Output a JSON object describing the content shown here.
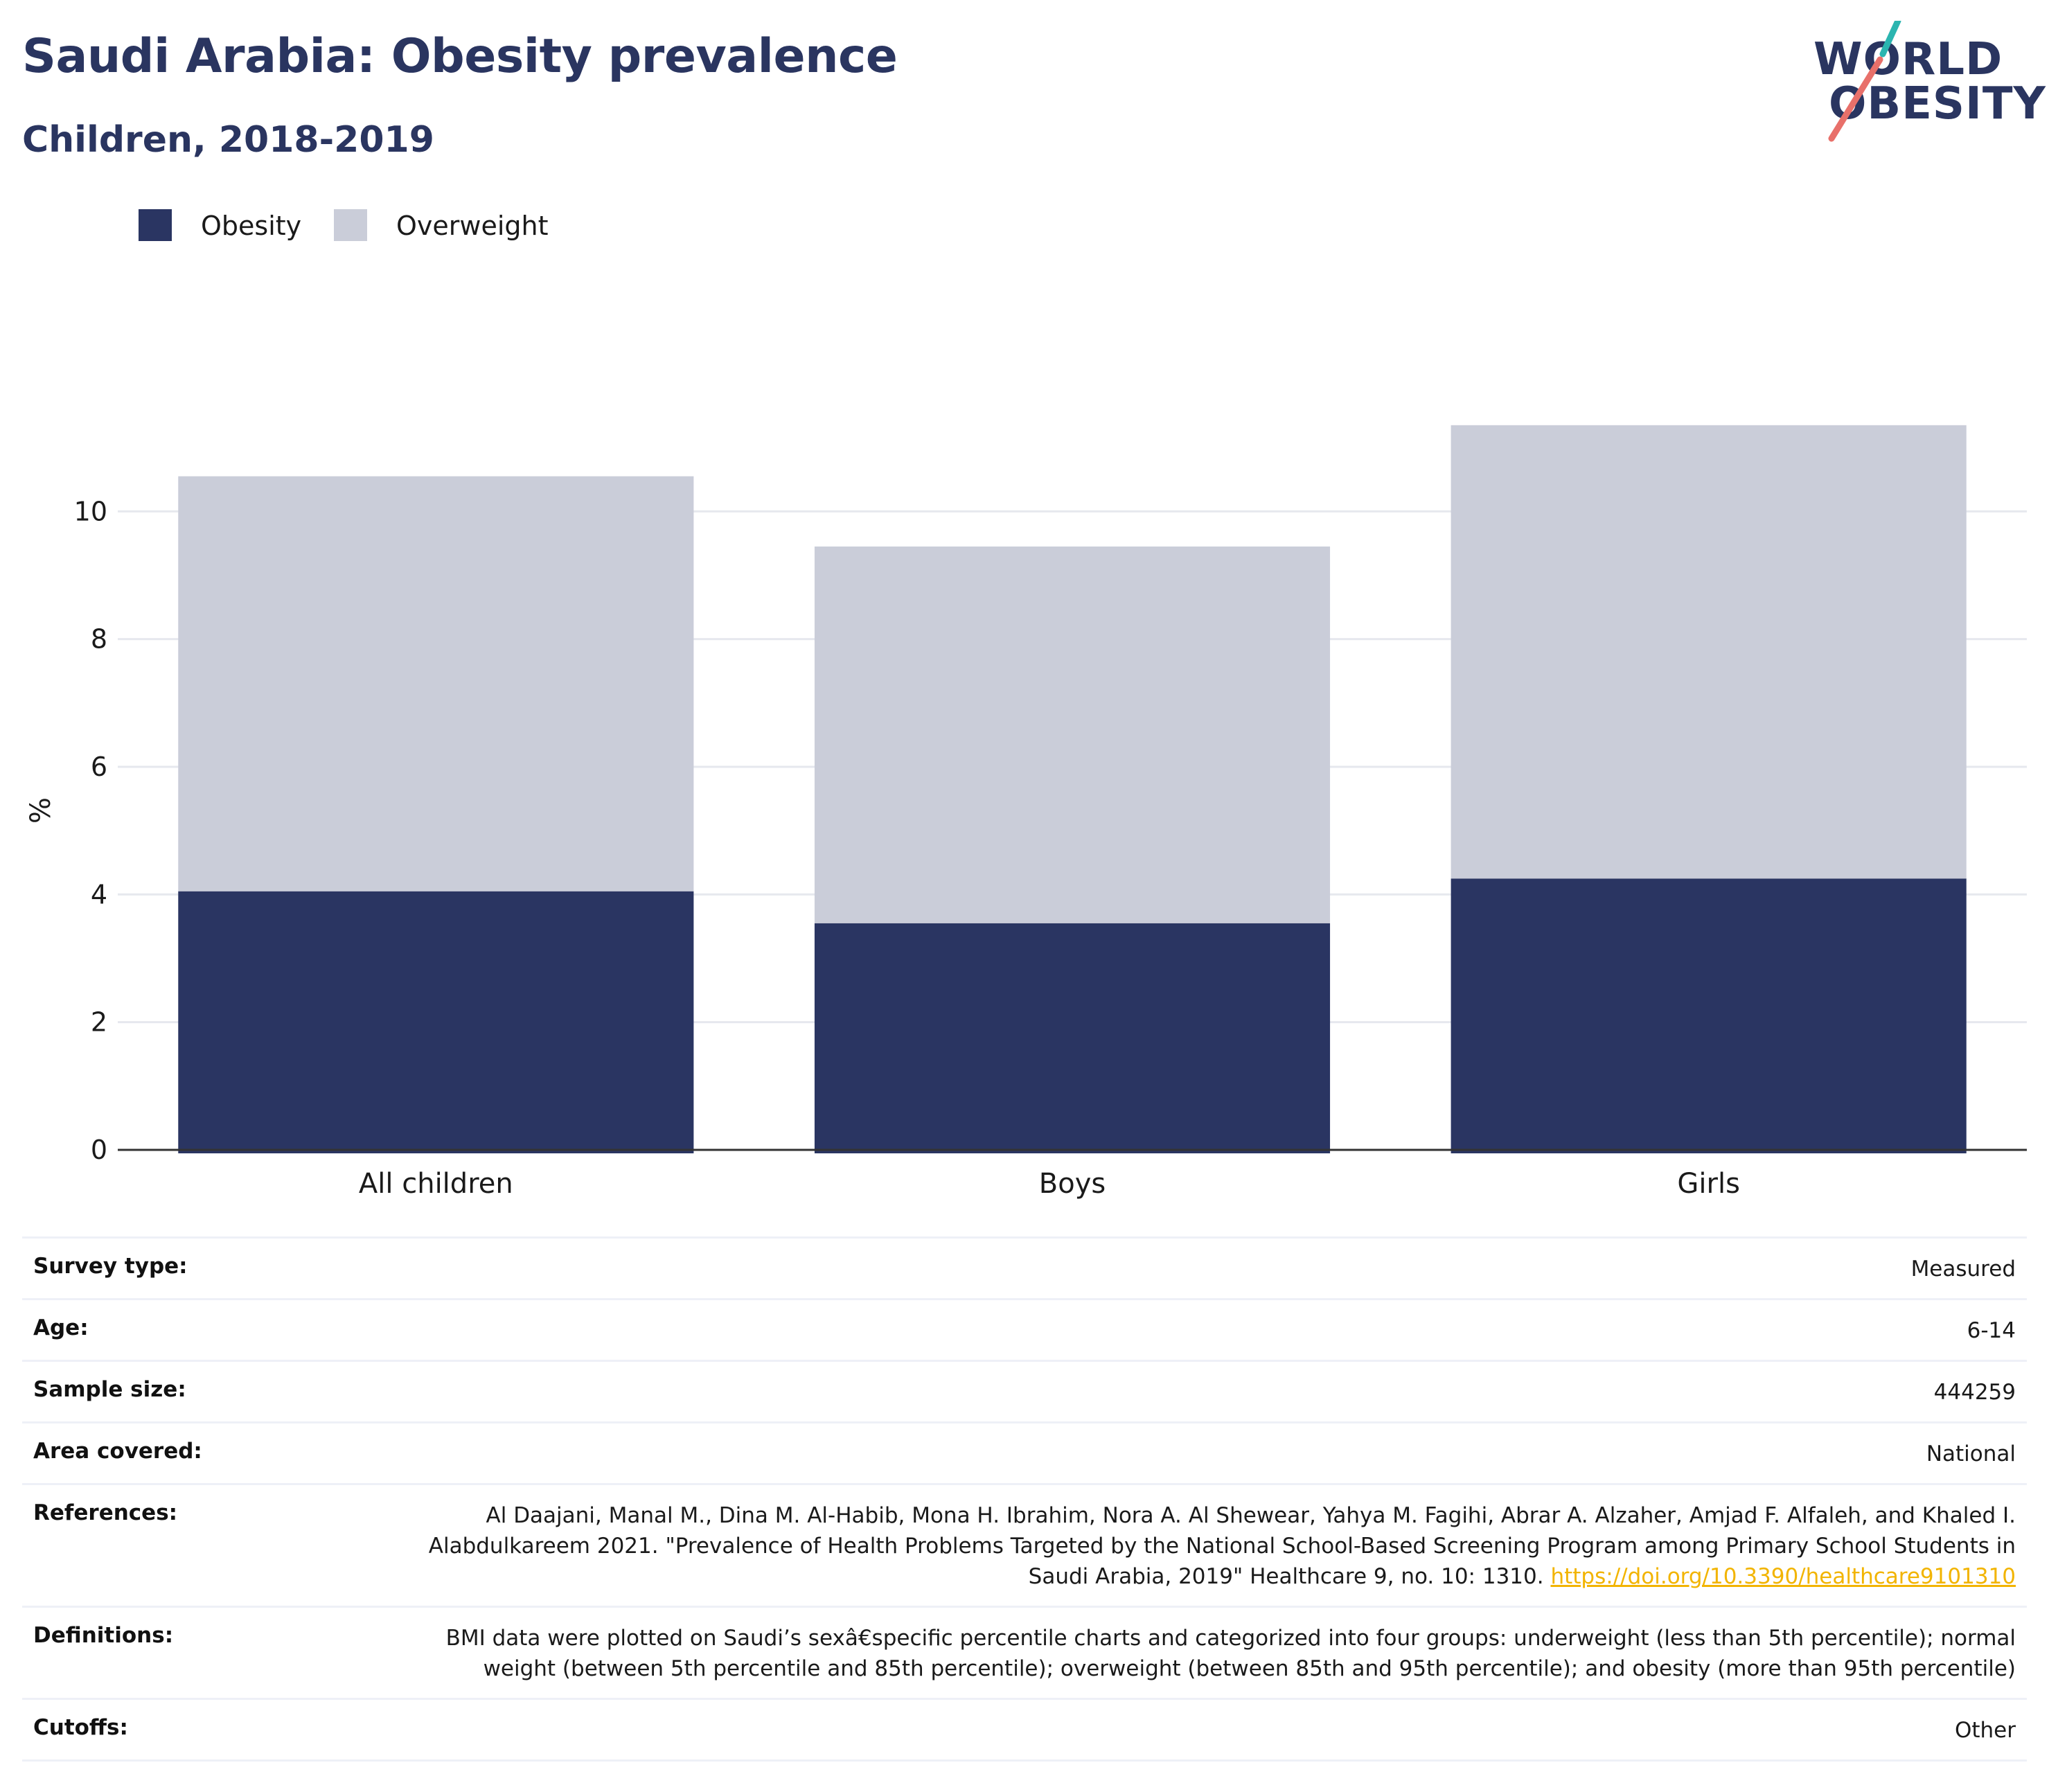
{
  "header": {
    "title": "Saudi Arabia: Obesity prevalence",
    "subtitle": "Children, 2018-2019"
  },
  "logo": {
    "line1": "WORLD",
    "line2": "OBESITY",
    "accent_teal": "#2bb5b0",
    "accent_red": "#e8706a"
  },
  "colors": {
    "obesity": "#2a3562",
    "overweight": "#cacdd9",
    "link": "#f2b400"
  },
  "chart_data": {
    "type": "bar",
    "stacked": true,
    "categories": [
      "All children",
      "Boys",
      "Girls"
    ],
    "series": [
      {
        "name": "Obesity",
        "values": [
          4.05,
          3.55,
          4.25
        ]
      },
      {
        "name": "Overweight",
        "values": [
          6.5,
          5.9,
          7.1
        ]
      }
    ],
    "ylabel": "%",
    "xlabel": "",
    "ylim": [
      0,
      11.5
    ],
    "yticks": [
      0,
      2,
      4,
      6,
      8,
      10
    ],
    "grid": true,
    "legend_position": "top-left"
  },
  "metadata": [
    {
      "label": "Survey type:",
      "value": "Measured"
    },
    {
      "label": "Age:",
      "value": "6-14"
    },
    {
      "label": "Sample size:",
      "value": "444259"
    },
    {
      "label": "Area covered:",
      "value": "National"
    },
    {
      "label": "References:",
      "value": "Al Daajani, Manal M., Dina M. Al-Habib, Mona H. Ibrahim, Nora A. Al Shewear, Yahya M. Fagihi, Abrar A. Alzaher, Amjad F. Alfaleh, and Khaled I. Alabdulkareem 2021. \"Prevalence of Health Problems Targeted by the National School-Based Screening Program among Primary School Students in Saudi Arabia, 2019\" Healthcare 9, no. 10: 1310.",
      "link": "https://doi.org/10.3390/healthcare9101310"
    },
    {
      "label": "Definitions:",
      "value": "BMI data were plotted on Saudi’s sexâ€‌specific percentile charts and categorized into four groups: underweight (less than 5th percentile); normal weight (between 5th percentile and 85th percentile); overweight (between 85th and 95th percentile); and obesity (more than 95th percentile)"
    },
    {
      "label": "Cutoffs:",
      "value": "Other"
    }
  ]
}
